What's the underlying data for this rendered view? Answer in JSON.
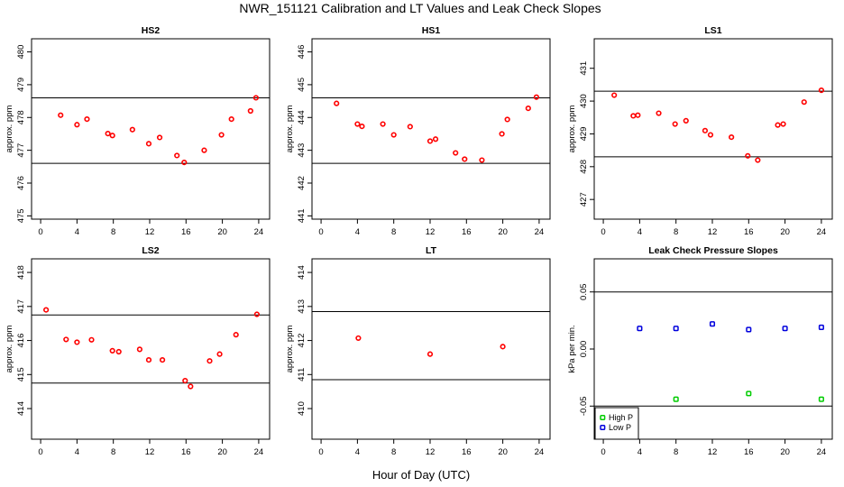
{
  "title": "NWR_151121  Calibration and LT Values and Leak Check Slopes",
  "xlabel": "Hour of Day (UTC)",
  "chart_data": [
    {
      "type": "scatter",
      "title": "HS2",
      "ylabel": "approx. ppm",
      "xlim": [
        -1,
        25.2
      ],
      "ylim": [
        474.9,
        480.4
      ],
      "xticks": [
        0,
        4,
        8,
        12,
        16,
        20,
        24
      ],
      "yticks": [
        475,
        476,
        477,
        478,
        479,
        480
      ],
      "hlines": [
        478.6,
        476.6
      ],
      "series": [
        {
          "name": "HS2",
          "color": "#ff0000",
          "marker": "circle",
          "x": [
            2.2,
            4.0,
            5.1,
            7.4,
            7.9,
            10.1,
            11.9,
            13.1,
            15.0,
            15.8,
            18.0,
            19.9,
            21.0,
            23.1,
            23.7
          ],
          "y": [
            478.07,
            477.78,
            477.95,
            477.51,
            477.45,
            477.63,
            477.2,
            477.39,
            476.84,
            476.63,
            477.0,
            477.47,
            477.95,
            478.2,
            478.6
          ]
        }
      ]
    },
    {
      "type": "scatter",
      "title": "HS1",
      "ylabel": "approx. ppm",
      "xlim": [
        -1,
        25.2
      ],
      "ylim": [
        440.9,
        446.4
      ],
      "xticks": [
        0,
        4,
        8,
        12,
        16,
        20,
        24
      ],
      "yticks": [
        441,
        442,
        443,
        444,
        445,
        446
      ],
      "hlines": [
        444.6,
        442.6
      ],
      "series": [
        {
          "name": "HS1",
          "color": "#ff0000",
          "marker": "circle",
          "x": [
            1.7,
            4.0,
            4.5,
            6.8,
            8.0,
            9.8,
            12.0,
            12.6,
            14.8,
            15.8,
            17.7,
            19.9,
            20.5,
            22.8,
            23.7
          ],
          "y": [
            444.43,
            443.8,
            443.73,
            443.8,
            443.47,
            443.72,
            443.28,
            443.34,
            442.92,
            442.73,
            442.7,
            443.5,
            443.94,
            444.28,
            444.62
          ]
        }
      ]
    },
    {
      "type": "scatter",
      "title": "LS1",
      "ylabel": "approx. ppm",
      "xlim": [
        -1,
        25.2
      ],
      "ylim": [
        426.4,
        431.9
      ],
      "xticks": [
        0,
        4,
        8,
        12,
        16,
        20,
        24
      ],
      "yticks": [
        427,
        428,
        429,
        430,
        431
      ],
      "hlines": [
        430.3,
        428.3
      ],
      "series": [
        {
          "name": "LS1",
          "color": "#ff0000",
          "marker": "circle",
          "x": [
            1.2,
            3.3,
            3.8,
            6.1,
            7.9,
            9.1,
            11.2,
            11.8,
            14.1,
            15.9,
            17.0,
            19.2,
            19.8,
            22.1,
            24.0
          ],
          "y": [
            430.18,
            429.55,
            429.57,
            429.63,
            429.3,
            429.4,
            429.1,
            428.97,
            428.9,
            428.33,
            428.2,
            429.27,
            429.3,
            429.97,
            430.33
          ]
        }
      ]
    },
    {
      "type": "scatter",
      "title": "LS2",
      "ylabel": "approx. ppm",
      "xlim": [
        -1,
        25.2
      ],
      "ylim": [
        413.1,
        418.4
      ],
      "xticks": [
        0,
        4,
        8,
        12,
        16,
        20,
        24
      ],
      "yticks": [
        414,
        415,
        416,
        417,
        418
      ],
      "hlines": [
        416.75,
        414.75
      ],
      "series": [
        {
          "name": "LS2",
          "color": "#ff0000",
          "marker": "circle",
          "x": [
            0.6,
            2.8,
            4.0,
            5.6,
            7.9,
            8.6,
            10.9,
            11.9,
            13.4,
            15.9,
            16.5,
            18.6,
            19.7,
            21.5,
            23.8
          ],
          "y": [
            416.9,
            416.03,
            415.95,
            416.02,
            415.7,
            415.67,
            415.74,
            415.43,
            415.43,
            414.82,
            414.65,
            415.4,
            415.6,
            416.17,
            416.77
          ]
        }
      ]
    },
    {
      "type": "scatter",
      "title": "LT",
      "ylabel": "approx. ppm",
      "xlim": [
        -1,
        25.2
      ],
      "ylim": [
        409.1,
        414.4
      ],
      "xticks": [
        0,
        4,
        8,
        12,
        16,
        20,
        24
      ],
      "yticks": [
        410,
        411,
        412,
        413,
        414
      ],
      "hlines": [
        412.85,
        410.85
      ],
      "series": [
        {
          "name": "LT",
          "color": "#ff0000",
          "marker": "circle",
          "x": [
            4.1,
            12.0,
            20.0
          ],
          "y": [
            412.07,
            411.6,
            411.82
          ]
        }
      ]
    },
    {
      "type": "scatter",
      "title": "Leak Check Pressure Slopes",
      "ylabel": "kPa per min.",
      "xlim": [
        -1,
        25.2
      ],
      "ylim": [
        -0.079,
        0.079
      ],
      "xticks": [
        0,
        4,
        8,
        12,
        16,
        20,
        24
      ],
      "yticks": [
        -0.05,
        0.0,
        0.05
      ],
      "ytick_labels": [
        "-0.05",
        "0.00",
        "0.05"
      ],
      "hlines": [
        0.05,
        -0.05
      ],
      "legend": {
        "placement": "bottom-left",
        "entries": [
          "High P",
          "Low P"
        ]
      },
      "series": [
        {
          "name": "High P",
          "color": "#00cc00",
          "marker": "square",
          "x": [
            8,
            16,
            24
          ],
          "y": [
            -0.044,
            -0.039,
            -0.044
          ]
        },
        {
          "name": "Low P",
          "color": "#0000dd",
          "marker": "square",
          "x": [
            4,
            8,
            12,
            16,
            20,
            24
          ],
          "y": [
            0.018,
            0.018,
            0.022,
            0.017,
            0.018,
            0.019
          ]
        }
      ]
    }
  ]
}
